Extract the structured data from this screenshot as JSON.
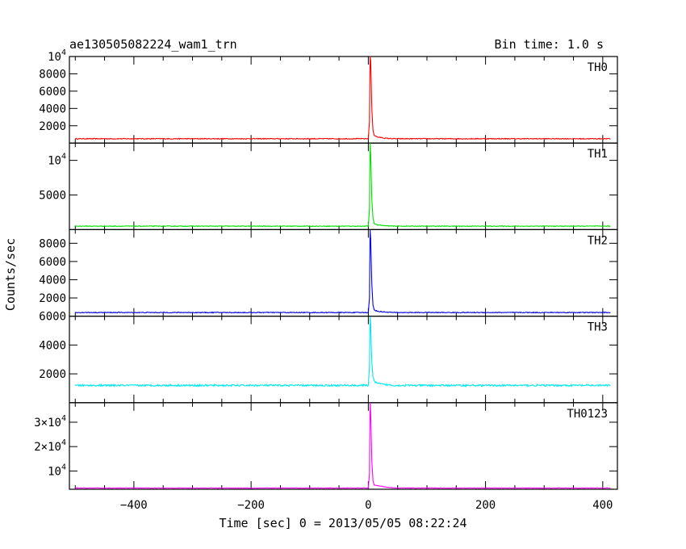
{
  "chart_data": {
    "type": "line",
    "title": "ae130505082224_wam1_trn",
    "bin_time": "Bin time: 1.0 s",
    "xlabel": "Time [sec] 0 = 2013/05/05 08:22:24",
    "ylabel": "Counts/sec",
    "xlim": [
      -510,
      425
    ],
    "x_ticks": [
      {
        "value": -400,
        "label": "−400"
      },
      {
        "value": -200,
        "label": "−200"
      },
      {
        "value": 0,
        "label": "0"
      },
      {
        "value": 200,
        "label": "200"
      },
      {
        "value": 400,
        "label": "400"
      }
    ],
    "series": [
      {
        "name": "TH0",
        "color": "#ff0000",
        "ylim": [
          0,
          10000
        ],
        "yticks": [
          {
            "value": 2000,
            "label": "2000"
          },
          {
            "value": 4000,
            "label": "4000"
          },
          {
            "value": 6000,
            "label": "6000"
          },
          {
            "value": 8000,
            "label": "8000"
          },
          {
            "value": 10000,
            "label": "10^4"
          }
        ],
        "baseline": 500,
        "noise": 50,
        "peak": [
          [
            0,
            520
          ],
          [
            2,
            2500
          ],
          [
            3,
            10000
          ],
          [
            4,
            9500
          ],
          [
            5,
            7000
          ],
          [
            6,
            4000
          ],
          [
            8,
            1500
          ],
          [
            10,
            900
          ],
          [
            15,
            700
          ],
          [
            20,
            650
          ],
          [
            30,
            550
          ],
          [
            45,
            500
          ]
        ]
      },
      {
        "name": "TH1",
        "color": "#00e000",
        "ylim": [
          0,
          12500
        ],
        "yticks": [
          {
            "value": 5000,
            "label": "5000"
          },
          {
            "value": 10000,
            "label": "10^4"
          }
        ],
        "baseline": 500,
        "noise": 50,
        "peak": [
          [
            0,
            520
          ],
          [
            2,
            3000
          ],
          [
            3,
            12500
          ],
          [
            4,
            11000
          ],
          [
            5,
            8000
          ],
          [
            6,
            4500
          ],
          [
            8,
            1600
          ],
          [
            10,
            900
          ],
          [
            15,
            700
          ],
          [
            20,
            650
          ],
          [
            30,
            550
          ],
          [
            45,
            500
          ]
        ]
      },
      {
        "name": "TH2",
        "color": "#0000ee",
        "ylim": [
          0,
          9500
        ],
        "yticks": [
          {
            "value": 2000,
            "label": "2000"
          },
          {
            "value": 4000,
            "label": "4000"
          },
          {
            "value": 6000,
            "label": "6000"
          },
          {
            "value": 8000,
            "label": "8000"
          }
        ],
        "baseline": 400,
        "noise": 45,
        "peak": [
          [
            0,
            420
          ],
          [
            2,
            2000
          ],
          [
            3,
            9500
          ],
          [
            4,
            8500
          ],
          [
            5,
            6000
          ],
          [
            6,
            3500
          ],
          [
            8,
            1200
          ],
          [
            10,
            700
          ],
          [
            15,
            550
          ],
          [
            20,
            500
          ],
          [
            30,
            450
          ],
          [
            45,
            400
          ]
        ]
      },
      {
        "name": "TH3",
        "color": "#00e8ee",
        "ylim": [
          0,
          6000
        ],
        "yticks": [
          {
            "value": 2000,
            "label": "2000"
          },
          {
            "value": 4000,
            "label": "4000"
          },
          {
            "value": 6000,
            "label": "6000"
          }
        ],
        "baseline": 1200,
        "noise": 60,
        "peak": [
          [
            0,
            1220
          ],
          [
            2,
            2500
          ],
          [
            3,
            6000
          ],
          [
            4,
            5500
          ],
          [
            5,
            4000
          ],
          [
            6,
            2800
          ],
          [
            8,
            1800
          ],
          [
            10,
            1500
          ],
          [
            15,
            1350
          ],
          [
            20,
            1300
          ],
          [
            30,
            1250
          ],
          [
            45,
            1200
          ]
        ]
      },
      {
        "name": "TH0123",
        "color": "#ff00ff",
        "ylim": [
          2500,
          38000
        ],
        "yticks": [
          {
            "value": 10000,
            "label": "10^4"
          },
          {
            "value": 20000,
            "label": "2×10^4"
          },
          {
            "value": 30000,
            "label": "3×10^4"
          }
        ],
        "baseline": 3000,
        "noise": 120,
        "peak": [
          [
            0,
            3050
          ],
          [
            2,
            9000
          ],
          [
            3,
            38000
          ],
          [
            4,
            34000
          ],
          [
            5,
            25000
          ],
          [
            6,
            14000
          ],
          [
            8,
            6000
          ],
          [
            10,
            4200
          ],
          [
            15,
            4000
          ],
          [
            20,
            3800
          ],
          [
            30,
            3400
          ],
          [
            45,
            3100
          ]
        ]
      }
    ],
    "grid": false,
    "legend": "per-panel label top-right"
  }
}
